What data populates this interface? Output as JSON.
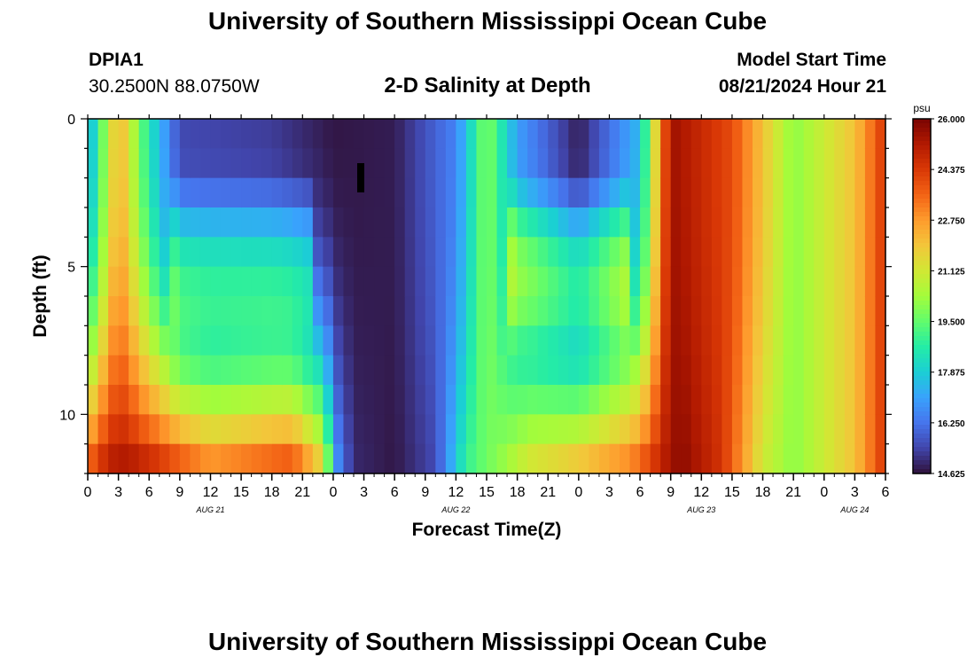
{
  "header": {
    "title": "University of Southern Mississippi Ocean Cube",
    "station_id": "DPIA1",
    "station_coords": "30.2500N  88.0750W",
    "chart_title": "2-D Salinity at Depth",
    "start_label": "Model Start Time",
    "start_value": "08/21/2024 Hour 21"
  },
  "footer": {
    "title": "University of Southern Mississippi Ocean Cube"
  },
  "chart_data": {
    "type": "heatmap",
    "title": "2-D Salinity at Depth",
    "xlabel": "Forecast Time(Z)",
    "ylabel": "Depth (ft)",
    "x_range_hours": [
      0,
      78
    ],
    "y_range_ft": [
      0,
      12
    ],
    "x_tick_labels": [
      "0",
      "3",
      "6",
      "9",
      "12",
      "15",
      "18",
      "21",
      "0",
      "3",
      "6",
      "9",
      "12",
      "15",
      "18",
      "21",
      "0",
      "3",
      "6",
      "9",
      "12",
      "15",
      "18",
      "21",
      "0",
      "3",
      "6"
    ],
    "y_ticks": [
      0,
      5,
      10
    ],
    "date_labels": [
      {
        "label": "AUG 21",
        "hour": 12
      },
      {
        "label": "AUG 22",
        "hour": 36
      },
      {
        "label": "AUG 23",
        "hour": 60
      },
      {
        "label": "AUG 24",
        "hour": 75
      }
    ],
    "colorbar": {
      "unit": "psu",
      "min": 14.625,
      "max": 26.0,
      "tick_labels": [
        "26.000",
        "24.375",
        "22.750",
        "21.125",
        "19.500",
        "17.875",
        "16.250",
        "14.625"
      ],
      "colors": [
        "#30123b",
        "#4145ab",
        "#4675ed",
        "#39a2fc",
        "#1bcfd4",
        "#24eca6",
        "#61fc6c",
        "#a4fc3b",
        "#d1e834",
        "#f3c63a",
        "#fe9b2d",
        "#f36315",
        "#d93806",
        "#b11901",
        "#7a0402"
      ]
    },
    "cell_size": {
      "hours": 1,
      "ft": 1
    },
    "depth_rows_ft": [
      0,
      1,
      2,
      3,
      4,
      5,
      6,
      7,
      8,
      9,
      10,
      11
    ],
    "salinity_profile_at_depth_0_psu": [
      {
        "hour": 0,
        "value": 17.0
      },
      {
        "hour": 3,
        "value": 22.5
      },
      {
        "hour": 6,
        "value": 18.5
      },
      {
        "hour": 9,
        "value": 15.5
      },
      {
        "hour": 18,
        "value": 15.3
      },
      {
        "hour": 24,
        "value": 14.7
      },
      {
        "hour": 30,
        "value": 14.8
      },
      {
        "hour": 36,
        "value": 16.5
      },
      {
        "hour": 39,
        "value": 20.0
      },
      {
        "hour": 42,
        "value": 17.0
      },
      {
        "hour": 48,
        "value": 14.8
      },
      {
        "hour": 54,
        "value": 17.5
      },
      {
        "hour": 57,
        "value": 25.5
      },
      {
        "hour": 63,
        "value": 24.0
      },
      {
        "hour": 69,
        "value": 20.0
      },
      {
        "hour": 75,
        "value": 22.0
      },
      {
        "hour": 78,
        "value": 24.5
      }
    ],
    "missing_data": {
      "hour": 26.5,
      "depth_ft": [
        1.5,
        2.5
      ]
    }
  }
}
